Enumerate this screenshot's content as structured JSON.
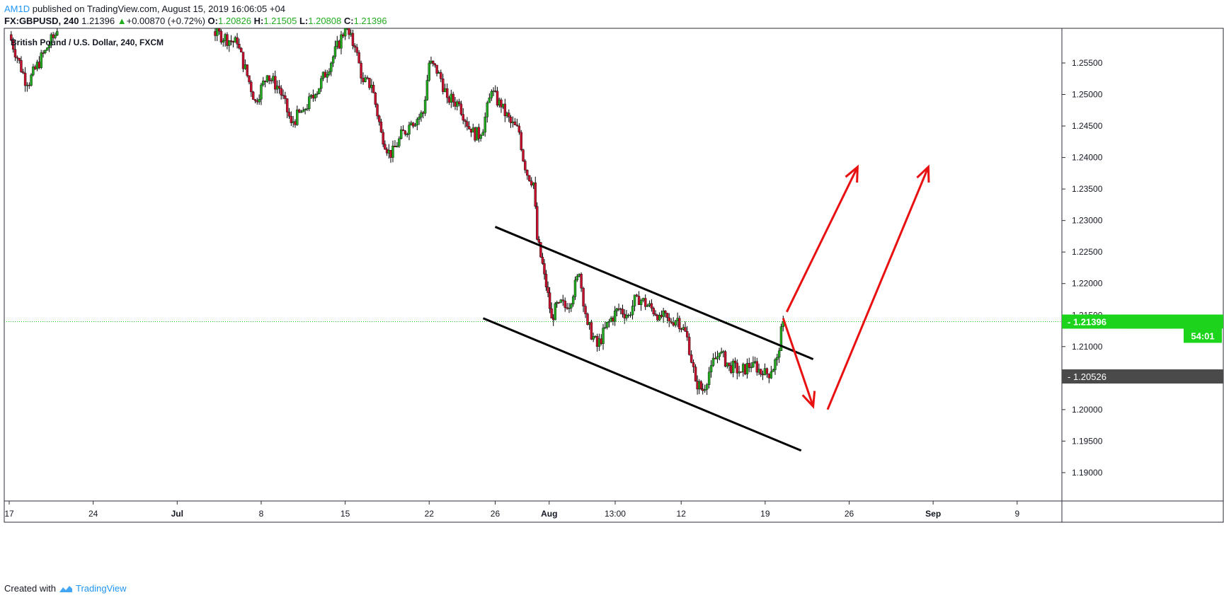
{
  "header": {
    "user": "AM1D",
    "published": "published on TradingView.com, August 15, 2019 16:06:05 +04",
    "symbol": "FX:GBPUSD, 240",
    "last": "1.21396",
    "change": "+0.00870 (+0.72%)",
    "open_label": "O:",
    "open": "1.20826",
    "high_label": "H:",
    "high": "1.21505",
    "low_label": "L:",
    "low": "1.20808",
    "close_label": "C:",
    "close": "1.21396"
  },
  "footer": {
    "created_with": "Created with",
    "brand": "TradingView"
  },
  "colors": {
    "up": "#22ab1f",
    "down": "#c8102e",
    "arrow": "#e81010",
    "line": "#000000",
    "price_tag": "#1cd41c",
    "price_line": "#22c422",
    "gray_tag": "#4a4a4a"
  },
  "chart_data": {
    "type": "candlestick",
    "title": "British Pound / U.S. Dollar, 240, FXCM",
    "ylim": [
      1.1855,
      1.2605
    ],
    "y_ticks": [
      "1.25500",
      "1.25000",
      "1.24500",
      "1.24000",
      "1.23500",
      "1.23000",
      "1.22500",
      "1.22000",
      "1.21500",
      "1.21000",
      "1.20500",
      "1.20000",
      "1.19500",
      "1.19000"
    ],
    "x_ticks": [
      {
        "label": "17",
        "day": 0
      },
      {
        "label": "24",
        "day": 7
      },
      {
        "label": "Jul",
        "day": 14
      },
      {
        "label": "8",
        "day": 21
      },
      {
        "label": "15",
        "day": 28
      },
      {
        "label": "22",
        "day": 35
      },
      {
        "label": "26",
        "day": 40.5
      },
      {
        "label": "Aug",
        "day": 45
      },
      {
        "label": "13:00",
        "day": 50.5
      },
      {
        "label": "12",
        "day": 56
      },
      {
        "label": "19",
        "day": 63
      },
      {
        "label": "26",
        "day": 70
      },
      {
        "label": "Sep",
        "day": 77
      },
      {
        "label": "9",
        "day": 84
      }
    ],
    "price_tag": {
      "label": "GBPUSD",
      "value": "1.21396",
      "countdown": "54:01"
    },
    "gray_tag": {
      "value": "1.20526"
    },
    "path": [
      [
        0.0,
        1.2595
      ],
      [
        1.5,
        1.2515
      ],
      [
        3.0,
        1.257
      ],
      [
        4.0,
        1.26
      ],
      [
        17.0,
        1.26
      ],
      [
        19.0,
        1.258
      ],
      [
        20.5,
        1.249
      ],
      [
        21.5,
        1.253
      ],
      [
        22.5,
        1.251
      ],
      [
        23.5,
        1.2455
      ],
      [
        24.5,
        1.2475
      ],
      [
        25.5,
        1.25
      ],
      [
        27.0,
        1.256
      ],
      [
        28.0,
        1.2605
      ],
      [
        28.8,
        1.2575
      ],
      [
        29.5,
        1.252
      ],
      [
        30.2,
        1.2515
      ],
      [
        31.0,
        1.244
      ],
      [
        31.8,
        1.24
      ],
      [
        32.5,
        1.243
      ],
      [
        33.5,
        1.2455
      ],
      [
        34.5,
        1.247
      ],
      [
        35.0,
        1.255
      ],
      [
        35.8,
        1.2535
      ],
      [
        36.5,
        1.2495
      ],
      [
        37.5,
        1.2485
      ],
      [
        38.5,
        1.244
      ],
      [
        39.3,
        1.2435
      ],
      [
        40.2,
        1.2505
      ],
      [
        41.0,
        1.248
      ],
      [
        41.8,
        1.2455
      ],
      [
        42.5,
        1.244
      ],
      [
        43.0,
        1.238
      ],
      [
        43.7,
        1.236
      ],
      [
        44.0,
        1.227
      ],
      [
        44.6,
        1.2215
      ],
      [
        45.2,
        1.2145
      ],
      [
        45.8,
        1.217
      ],
      [
        46.5,
        1.216
      ],
      [
        47.5,
        1.2215
      ],
      [
        48.2,
        1.2135
      ],
      [
        49.0,
        1.21
      ],
      [
        50.0,
        1.214
      ],
      [
        50.8,
        1.216
      ],
      [
        51.6,
        1.215
      ],
      [
        52.3,
        1.218
      ],
      [
        53.2,
        1.2165
      ],
      [
        54.2,
        1.215
      ],
      [
        55.0,
        1.214
      ],
      [
        55.7,
        1.2145
      ],
      [
        56.5,
        1.2115
      ],
      [
        57.2,
        1.2045
      ],
      [
        57.8,
        1.203
      ],
      [
        58.5,
        1.207
      ],
      [
        59.2,
        1.209
      ],
      [
        60.0,
        1.207
      ],
      [
        61.0,
        1.206
      ],
      [
        62.0,
        1.2075
      ],
      [
        62.8,
        1.2055
      ],
      [
        63.5,
        1.206
      ],
      [
        64.0,
        1.2083
      ],
      [
        64.5,
        1.214
      ]
    ],
    "trendlines": [
      {
        "points": [
          [
            40.5,
            1.229
          ],
          [
            67.0,
            1.208
          ]
        ]
      },
      {
        "points": [
          [
            39.5,
            1.2145
          ],
          [
            66.0,
            1.1935
          ]
        ]
      }
    ],
    "arrows": [
      {
        "points": [
          [
            64.5,
            1.2145
          ],
          [
            67.0,
            1.2005
          ]
        ]
      },
      {
        "points": [
          [
            64.8,
            1.2155
          ],
          [
            70.7,
            1.2385
          ]
        ]
      },
      {
        "points": [
          [
            68.2,
            1.2
          ],
          [
            76.6,
            1.2385
          ]
        ]
      }
    ]
  }
}
